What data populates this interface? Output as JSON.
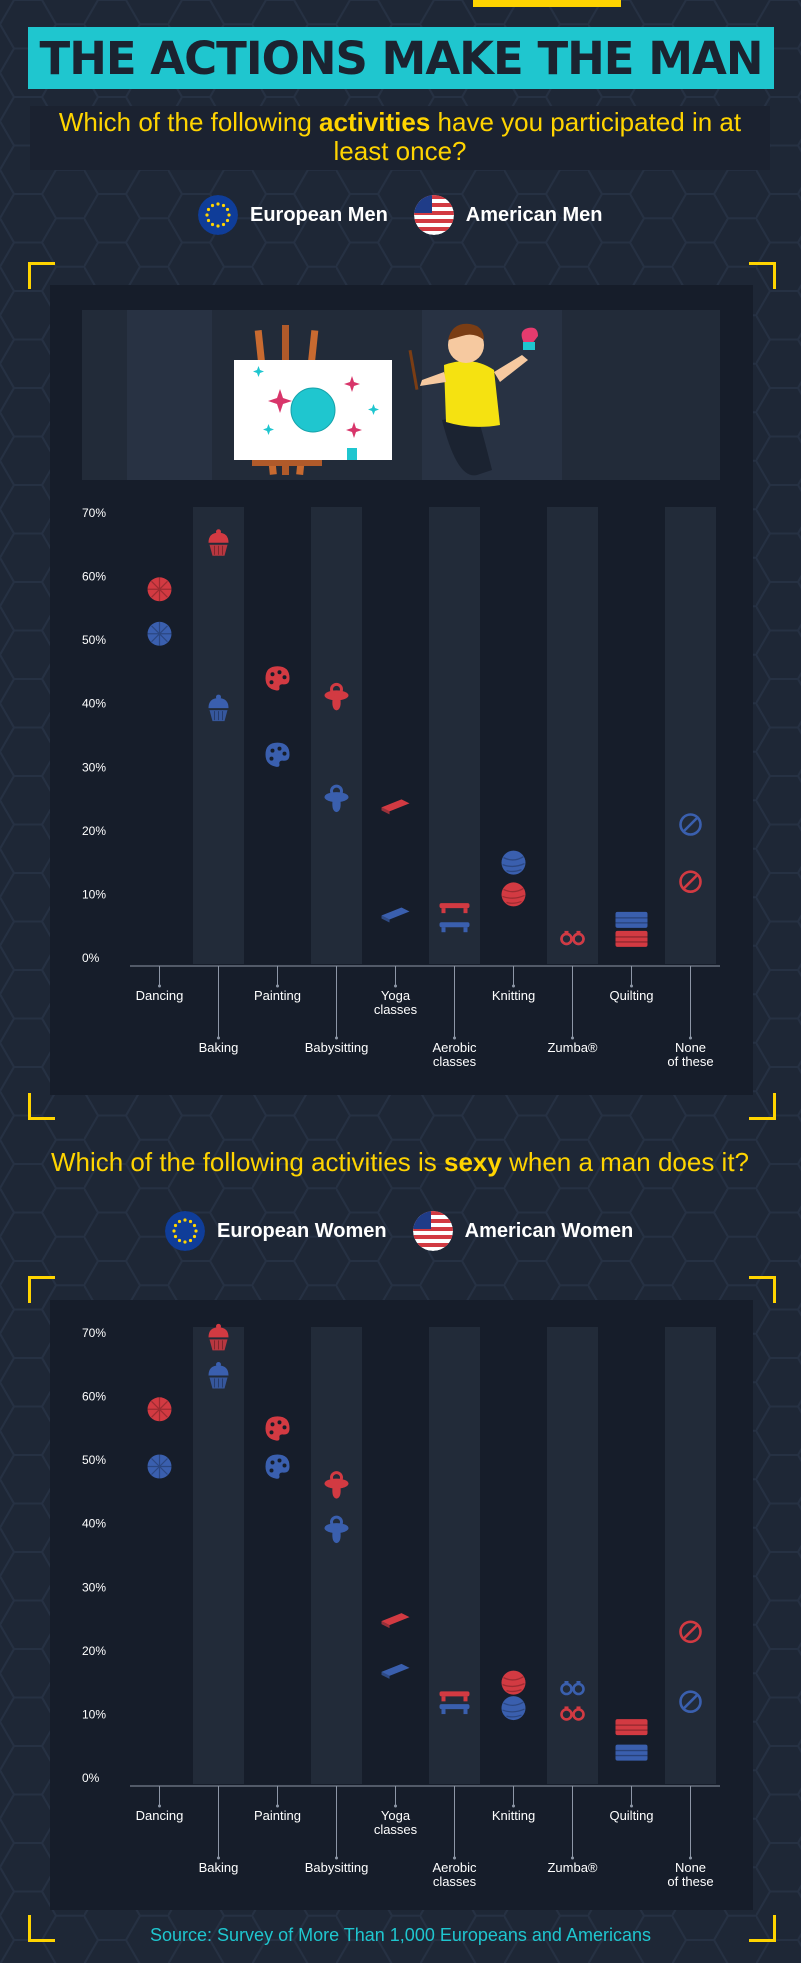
{
  "header": {
    "title": "THE ACTIONS MAKE THE MAN",
    "question1_pre": "Which of the following ",
    "question1_bold": "activities",
    "question1_post": " have you participated in at least once?",
    "question2_pre": "Which of the following activities is ",
    "question2_bold": "sexy",
    "question2_post": " when a man does it?"
  },
  "legend1": {
    "eu": "European Men",
    "us": "American Men"
  },
  "legend2": {
    "eu": "European Women",
    "us": "American Women"
  },
  "source": "Source: Survey of More Than 1,000 Europeans and Americans",
  "colors": {
    "eu": "#3a5fae",
    "us": "#d23a42",
    "accent": "#ffd400",
    "teal": "#1fc6cf",
    "bg": "#1e2736",
    "panel": "#161d2a",
    "stripe": "#222b39"
  },
  "chart_data": [
    {
      "type": "scatter",
      "title": "Which of the following activities have you participated in at least once?",
      "ylim": [
        0,
        70
      ],
      "yticks": [
        "0%",
        "10%",
        "20%",
        "30%",
        "40%",
        "50%",
        "60%",
        "70%"
      ],
      "categories": [
        "Dancing",
        "Baking",
        "Painting",
        "Babysitting",
        "Yoga classes",
        "Aerobic classes",
        "Knitting",
        "Zumba®",
        "Quilting",
        "None of these"
      ],
      "category_lines": [
        [
          "Dancing"
        ],
        [
          "Baking"
        ],
        [
          "Painting"
        ],
        [
          "Babysitting"
        ],
        [
          "Yoga",
          "classes"
        ],
        [
          "Aerobic",
          "classes"
        ],
        [
          "Knitting"
        ],
        [
          "Zumba®"
        ],
        [
          "Quilting"
        ],
        [
          "None",
          "of these"
        ]
      ],
      "icons": [
        "disco-ball-icon",
        "cupcake-icon",
        "palette-icon",
        "pacifier-icon",
        "yoga-mat-icon",
        "step-platform-icon",
        "yarn-ball-icon",
        "sneakers-icon",
        "quilt-icon",
        "none-icon"
      ],
      "series": [
        {
          "name": "European Men",
          "key": "eu",
          "values": [
            51,
            39,
            32,
            25,
            7,
            5,
            15,
            3,
            6,
            21
          ]
        },
        {
          "name": "American Men",
          "key": "us",
          "values": [
            58,
            65,
            44,
            41,
            24,
            8,
            10,
            3,
            3,
            12
          ]
        }
      ]
    },
    {
      "type": "scatter",
      "title": "Which of the following activities is sexy when a man does it?",
      "ylim": [
        0,
        70
      ],
      "yticks": [
        "0%",
        "10%",
        "20%",
        "30%",
        "40%",
        "50%",
        "60%",
        "70%"
      ],
      "categories": [
        "Dancing",
        "Baking",
        "Painting",
        "Babysitting",
        "Yoga classes",
        "Aerobic classes",
        "Knitting",
        "Zumba®",
        "Quilting",
        "None of these"
      ],
      "category_lines": [
        [
          "Dancing"
        ],
        [
          "Baking"
        ],
        [
          "Painting"
        ],
        [
          "Babysitting"
        ],
        [
          "Yoga",
          "classes"
        ],
        [
          "Aerobic",
          "classes"
        ],
        [
          "Knitting"
        ],
        [
          "Zumba®"
        ],
        [
          "Quilting"
        ],
        [
          "None",
          "of these"
        ]
      ],
      "icons": [
        "disco-ball-icon",
        "cupcake-icon",
        "palette-icon",
        "pacifier-icon",
        "yoga-mat-icon",
        "step-platform-icon",
        "yarn-ball-icon",
        "sneakers-icon",
        "quilt-icon",
        "none-icon"
      ],
      "series": [
        {
          "name": "European Women",
          "key": "eu",
          "values": [
            49,
            63,
            49,
            39,
            17,
            11,
            11,
            14,
            4,
            12
          ]
        },
        {
          "name": "American Women",
          "key": "us",
          "values": [
            58,
            69,
            55,
            46,
            25,
            13,
            15,
            10,
            8,
            23
          ]
        }
      ]
    }
  ]
}
